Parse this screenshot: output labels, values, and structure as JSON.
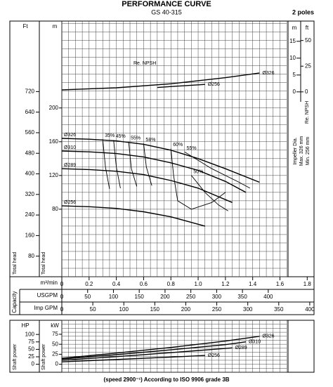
{
  "header": {
    "title": "PERFORMANCE CURVE",
    "subtitle": "GS 40-315",
    "poles": "2 poles",
    "footer": "(speed 2900⁻¹) According to ISO 9906 grade 3B"
  },
  "flow_axes": {
    "axis_label": "Capacity",
    "m3": {
      "unit": "m³/min",
      "xlim": [
        0,
        1.85
      ],
      "xticks": [
        0,
        0.2,
        0.4,
        0.6,
        0.8,
        {
          "value": 1,
          "label": "1.0"
        },
        1.2,
        1.4,
        1.6,
        1.8
      ]
    },
    "usgpm": {
      "unit": "USGPM",
      "xlim": [
        0,
        488.7
      ],
      "xticks": [
        0,
        50,
        100,
        150,
        200,
        250,
        300,
        350,
        400
      ]
    },
    "impgpm": {
      "unit": "Imp GPM",
      "xlim": [
        0,
        406.9
      ],
      "xticks": [
        0,
        50,
        100,
        150,
        200,
        250,
        300,
        350,
        400
      ]
    }
  },
  "chart_data": [
    {
      "type": "line",
      "label": "Re. NPSH",
      "y_axis_label": "Re. NPSH",
      "color": "#000000",
      "xlim": [
        0,
        1.85
      ],
      "y_unit": "m",
      "ylim": [
        -2.5,
        21
      ],
      "yticks": [
        0,
        5,
        10,
        15
      ],
      "y2_unit": "ft",
      "y2lim": [
        -8.2,
        68.9
      ],
      "y2ticks": [
        0,
        25,
        50
      ],
      "label_position": "end",
      "series": [
        {
          "name": "Ø326",
          "x": [
            0,
            0.4,
            0.8,
            1.2,
            1.45
          ],
          "values": [
            0.6,
            1.2,
            2.4,
            4.2,
            5.6
          ]
        },
        {
          "name": "Ø256",
          "x": [
            0.7,
            0.85,
            1.05
          ],
          "values": [
            1.3,
            1.7,
            2.2
          ]
        }
      ]
    },
    {
      "type": "line",
      "color": "#000000",
      "xlim": [
        0,
        1.85
      ],
      "y_unit": "m",
      "y_axis_label": "Total head",
      "ylim": [
        0,
        303
      ],
      "yticks": [
        80,
        120,
        160,
        200
      ],
      "y2_unit": "Ft",
      "y2_axis_label": "Total head",
      "y2lim": [
        0,
        994.1
      ],
      "y2ticks": [
        80,
        160,
        240,
        320,
        400,
        480,
        560,
        640,
        720
      ],
      "grid": true,
      "xminor": [
        0,
        0.05,
        0.1,
        0.15,
        0.2,
        0.25,
        0.3,
        0.35,
        0.4,
        0.45,
        0.5,
        0.55,
        0.6,
        0.65,
        0.7,
        0.75,
        0.8,
        0.85,
        0.9,
        0.95,
        1,
        1.05,
        1.1,
        1.15,
        1.2,
        1.25,
        1.3,
        1.35,
        1.4,
        1.45,
        1.5,
        1.55,
        1.6,
        1.65
      ],
      "yminor": [
        0,
        10,
        20,
        30,
        40,
        50,
        60,
        70,
        80,
        90,
        100,
        110,
        120,
        130,
        140,
        150,
        160,
        170,
        180,
        190,
        200,
        210,
        220,
        230,
        240,
        250,
        260,
        270,
        280,
        290,
        300
      ],
      "label_position": "start",
      "series": [
        {
          "name": "Ø326",
          "x": [
            0,
            0.2,
            0.4,
            0.6,
            0.8,
            1.0,
            1.2,
            1.45
          ],
          "values": [
            164,
            163,
            161,
            157,
            150,
            140,
            128,
            112
          ]
        },
        {
          "name": "Ø310",
          "x": [
            0,
            0.2,
            0.4,
            0.6,
            0.8,
            1.0,
            1.2,
            1.35
          ],
          "values": [
            149,
            148,
            146,
            142,
            135,
            126,
            113,
            100
          ]
        },
        {
          "name": "Ø289",
          "x": [
            0,
            0.2,
            0.4,
            0.6,
            0.8,
            1.0,
            1.25
          ],
          "values": [
            128,
            127,
            125,
            121,
            114,
            105,
            88
          ]
        },
        {
          "name": "Ø256",
          "x": [
            0,
            0.2,
            0.4,
            0.6,
            0.8,
            1.05
          ],
          "values": [
            84,
            83,
            81,
            77,
            71,
            60
          ]
        }
      ],
      "efficiency": [
        {
          "name": "35%",
          "x": [
            0.3,
            0.32,
            0.35
          ],
          "values": [
            163,
            130,
            104
          ]
        },
        {
          "name": "45%",
          "x": [
            0.38,
            0.4,
            0.43
          ],
          "values": [
            162,
            130,
            105
          ]
        },
        {
          "name": "55%",
          "x": [
            0.49,
            0.51,
            0.55
          ],
          "values": [
            160,
            128,
            107
          ]
        },
        {
          "name": "58%",
          "x": [
            0.6,
            0.62,
            0.66
          ],
          "values": [
            158,
            130,
            108
          ]
        },
        {
          "name": "60%",
          "x": [
            0.8,
            0.82,
            0.85,
            0.95,
            1.1,
            1.2
          ],
          "values": [
            152,
            120,
            90,
            80,
            88,
            100
          ]
        },
        {
          "name": "55%",
          "x": [
            0.9,
            1.1,
            1.3,
            1.38
          ],
          "values": [
            148,
            128,
            112,
            105
          ]
        },
        {
          "name": "50%",
          "x": [
            0.95,
            1.05,
            1.15,
            1.22
          ],
          "values": [
            120,
            100,
            85,
            78
          ]
        }
      ],
      "impeller_label": [
        "Impeller Dia.",
        "Max. 326 mm",
        "Min. 256 mm"
      ]
    },
    {
      "type": "line",
      "color": "#000000",
      "xlim": [
        0,
        1.85
      ],
      "y_unit": "kW",
      "y_axis_label": "Shaft power",
      "ylim": [
        -20,
        110
      ],
      "yticks": [
        0,
        25,
        50,
        75
      ],
      "y2_unit": "HP",
      "y2_axis_label": "Shaft power",
      "y2lim": [
        -26.8,
        147.5
      ],
      "y2ticks": [
        0,
        25,
        50,
        75,
        100
      ],
      "grid": true,
      "yminor": [
        -20,
        -10,
        0,
        10,
        20,
        30,
        40,
        50,
        60,
        70,
        80,
        90,
        100,
        110
      ],
      "label_position": "end",
      "series": [
        {
          "name": "Ø326",
          "x": [
            0,
            0.4,
            0.8,
            1.2,
            1.45
          ],
          "values": [
            15,
            28,
            42,
            58,
            70
          ]
        },
        {
          "name": "Ø310",
          "x": [
            0,
            0.4,
            0.8,
            1.2,
            1.35
          ],
          "values": [
            13,
            24,
            36,
            49,
            56
          ]
        },
        {
          "name": "Ø289",
          "x": [
            0,
            0.4,
            0.8,
            1.25
          ],
          "values": [
            10,
            19,
            29,
            41
          ]
        },
        {
          "name": "Ø256",
          "x": [
            0,
            0.4,
            0.8,
            1.05
          ],
          "values": [
            6,
            12,
            18,
            22
          ]
        }
      ]
    }
  ]
}
